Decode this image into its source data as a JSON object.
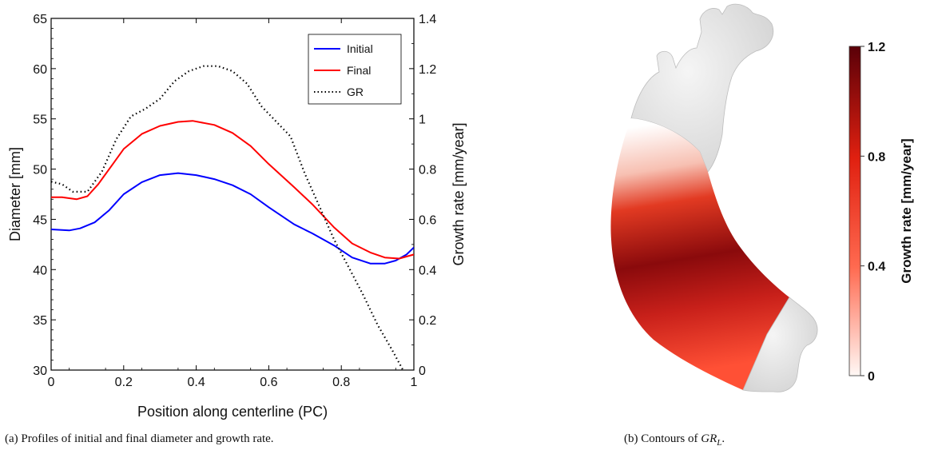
{
  "chart_data": [
    {
      "type": "line",
      "xlabel": "Position along centerline (PC)",
      "ylabel": "Diameter [mm]",
      "y2label": "Growth rate [mm/year]",
      "xlim": [
        0,
        1
      ],
      "ylim": [
        30,
        65
      ],
      "y2lim": [
        0,
        1.4
      ],
      "x_ticks": [
        "0",
        "0.2",
        "0.4",
        "0.6",
        "0.8",
        "1"
      ],
      "y_ticks": [
        "30",
        "35",
        "40",
        "45",
        "50",
        "55",
        "60",
        "65"
      ],
      "y2_ticks": [
        "0",
        "0.2",
        "0.4",
        "0.6",
        "0.8",
        "1",
        "1.2",
        "1.4"
      ],
      "grid": false,
      "legend_position": "top-right",
      "series": [
        {
          "name": "Initial",
          "axis": "left",
          "color": "#0000ff",
          "style": "solid",
          "x": [
            0,
            0.05,
            0.08,
            0.12,
            0.16,
            0.2,
            0.25,
            0.3,
            0.35,
            0.4,
            0.45,
            0.5,
            0.55,
            0.6,
            0.67,
            0.72,
            0.78,
            0.83,
            0.88,
            0.92,
            0.95,
            0.98,
            1.0
          ],
          "values": [
            44.0,
            43.9,
            44.1,
            44.7,
            45.9,
            47.5,
            48.7,
            49.4,
            49.6,
            49.4,
            49.0,
            48.4,
            47.5,
            46.2,
            44.5,
            43.6,
            42.4,
            41.2,
            40.6,
            40.6,
            40.9,
            41.5,
            42.2
          ]
        },
        {
          "name": "Final",
          "axis": "left",
          "color": "#ff0000",
          "style": "solid",
          "x": [
            0,
            0.03,
            0.07,
            0.1,
            0.13,
            0.17,
            0.2,
            0.25,
            0.3,
            0.35,
            0.39,
            0.45,
            0.5,
            0.55,
            0.6,
            0.67,
            0.72,
            0.78,
            0.83,
            0.88,
            0.92,
            0.96,
            1.0
          ],
          "values": [
            47.2,
            47.2,
            47.0,
            47.3,
            48.5,
            50.5,
            52.0,
            53.5,
            54.3,
            54.7,
            54.8,
            54.4,
            53.6,
            52.3,
            50.5,
            48.2,
            46.5,
            44.2,
            42.6,
            41.7,
            41.2,
            41.1,
            41.5
          ]
        },
        {
          "name": "GR",
          "axis": "right",
          "color": "#000000",
          "style": "dotted",
          "x": [
            0,
            0.03,
            0.06,
            0.1,
            0.14,
            0.18,
            0.22,
            0.26,
            0.3,
            0.34,
            0.38,
            0.42,
            0.46,
            0.5,
            0.54,
            0.58,
            0.62,
            0.66,
            0.7,
            0.74,
            0.78,
            0.82,
            0.86,
            0.9,
            0.94,
            0.97
          ],
          "values": [
            0.75,
            0.74,
            0.71,
            0.71,
            0.79,
            0.92,
            1.01,
            1.04,
            1.08,
            1.15,
            1.19,
            1.21,
            1.21,
            1.19,
            1.14,
            1.05,
            0.99,
            0.93,
            0.78,
            0.65,
            0.52,
            0.41,
            0.3,
            0.18,
            0.08,
            0.0
          ]
        }
      ],
      "caption": "(a)  Profiles of initial and final diameter and growth rate."
    },
    {
      "type": "heatmap",
      "colorbar_label": "Growth rate [mm/year]",
      "colorbar_ticks": [
        "0",
        "0.4",
        "0.8",
        "1.2"
      ],
      "colorbar_range": [
        0,
        1.2
      ],
      "colormap": [
        "#fff8f5",
        "#ff6a50",
        "#e02010",
        "#5a0008"
      ],
      "caption_prefix": "(b)  Contours of ",
      "caption_math": "GR",
      "caption_sub": "L",
      "caption_suffix": "."
    }
  ]
}
